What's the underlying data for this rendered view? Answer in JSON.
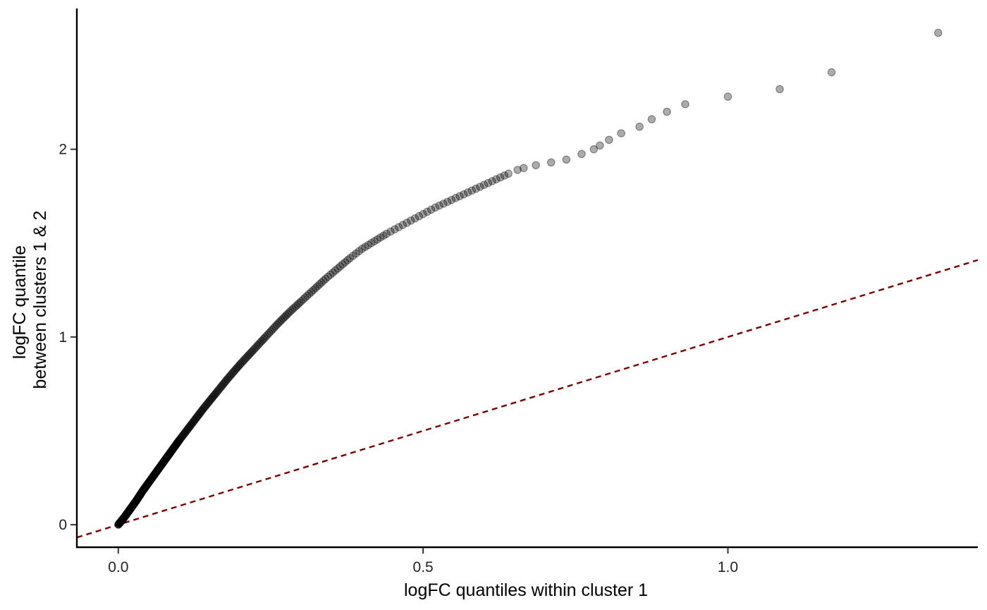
{
  "chart_data": {
    "type": "scatter",
    "title": "",
    "xlabel": "logFC quantiles within cluster 1",
    "ylabel_lines": [
      "logFC quantile",
      "between clusters 1 & 2"
    ],
    "xlim": [
      -0.068,
      1.41
    ],
    "ylim": [
      -0.12,
      2.75
    ],
    "x_ticks": [
      0.0,
      0.5,
      1.0
    ],
    "x_tick_labels": [
      "0.0",
      "0.5",
      "1.0"
    ],
    "y_ticks": [
      0,
      1,
      2
    ],
    "y_tick_labels": [
      "0",
      "1",
      "2"
    ],
    "grid": false,
    "legend": "none",
    "point_color": "#000000",
    "point_opacity": 0.33,
    "reference_line": {
      "slope": 1,
      "intercept": 0,
      "color": "#7a0000",
      "style": "dashed"
    },
    "curve_points": [
      [
        0.0,
        0.0
      ],
      [
        0.01,
        0.04
      ],
      [
        0.02,
        0.085
      ],
      [
        0.03,
        0.13
      ],
      [
        0.04,
        0.18
      ],
      [
        0.05,
        0.225
      ],
      [
        0.06,
        0.27
      ],
      [
        0.07,
        0.315
      ],
      [
        0.08,
        0.36
      ],
      [
        0.09,
        0.405
      ],
      [
        0.1,
        0.45
      ],
      [
        0.12,
        0.535
      ],
      [
        0.14,
        0.62
      ],
      [
        0.16,
        0.7
      ],
      [
        0.18,
        0.78
      ],
      [
        0.2,
        0.855
      ],
      [
        0.22,
        0.925
      ],
      [
        0.24,
        0.995
      ],
      [
        0.26,
        1.065
      ],
      [
        0.28,
        1.13
      ],
      [
        0.3,
        1.19
      ],
      [
        0.32,
        1.25
      ],
      [
        0.34,
        1.31
      ],
      [
        0.36,
        1.365
      ],
      [
        0.38,
        1.42
      ],
      [
        0.4,
        1.47
      ],
      [
        0.42,
        1.51
      ],
      [
        0.44,
        1.55
      ],
      [
        0.46,
        1.585
      ],
      [
        0.48,
        1.62
      ],
      [
        0.5,
        1.655
      ],
      [
        0.52,
        1.69
      ],
      [
        0.54,
        1.72
      ],
      [
        0.56,
        1.75
      ],
      [
        0.58,
        1.78
      ],
      [
        0.6,
        1.81
      ],
      [
        0.62,
        1.84
      ],
      [
        0.64,
        1.87
      ]
    ],
    "tail_points": [
      [
        0.655,
        1.89
      ],
      [
        0.665,
        1.9
      ],
      [
        0.685,
        1.915
      ],
      [
        0.71,
        1.93
      ],
      [
        0.735,
        1.945
      ],
      [
        0.76,
        1.975
      ],
      [
        0.78,
        2.0
      ],
      [
        0.79,
        2.02
      ],
      [
        0.805,
        2.05
      ],
      [
        0.825,
        2.085
      ],
      [
        0.855,
        2.12
      ],
      [
        0.875,
        2.16
      ],
      [
        0.9,
        2.2
      ],
      [
        0.93,
        2.24
      ],
      [
        1.0,
        2.28
      ],
      [
        1.085,
        2.32
      ],
      [
        1.17,
        2.41
      ],
      [
        1.345,
        2.62
      ]
    ]
  }
}
